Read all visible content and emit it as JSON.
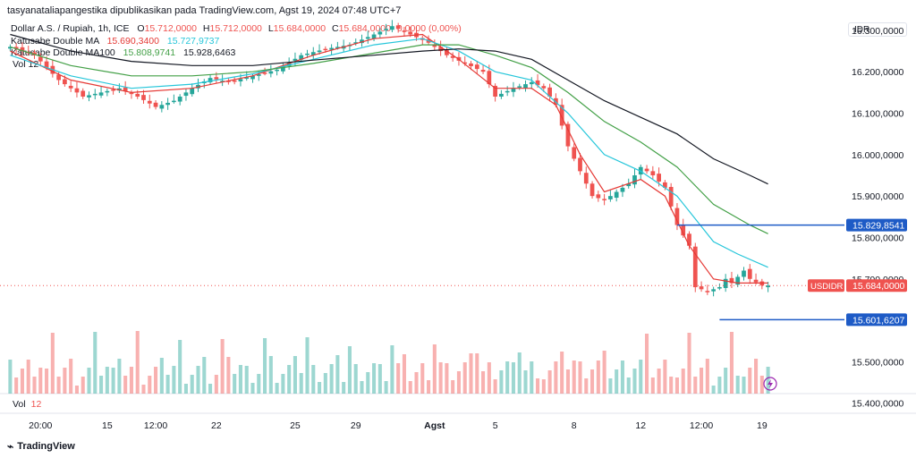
{
  "header": "tasyanataliapangestika dipublikasikan pada TradingView.com, Agst 19, 2024 07:48 UTC+7",
  "symbol": {
    "name": "Dollar A.S. / Rupiah, 1h, ICE",
    "O_label": "O",
    "O": "15.712,0000",
    "H_label": "H",
    "H": "15.712,0000",
    "L_label": "L",
    "L": "15.684,0000",
    "C_label": "C",
    "C": "15.684,0000",
    "change": "0,0000 (0,00%)"
  },
  "indicators": [
    {
      "name": "Katusabe Double MA",
      "v1": "15.690,3400",
      "v2": "15.727,9737",
      "c1": "#e53935",
      "c2": "#26c6da"
    },
    {
      "name": "Katusabe Double MA100",
      "v1": "15.808,9741",
      "v2": "15.928,6463",
      "c1": "#43a047",
      "c2": "#131722"
    }
  ],
  "vol_top": "Vol 12",
  "vol_pane": {
    "label": "Vol",
    "value": "12"
  },
  "currency": "IDR",
  "footer": "TradingView",
  "chart_data": {
    "type": "candlestick",
    "title": "Dollar A.S. / Rupiah, 1h, ICE",
    "ylabel": "IDR",
    "ylim": [
      15380,
      16330
    ],
    "y_ticks": [
      "16.300,0000",
      "16.200,0000",
      "16.100,0000",
      "16.000,0000",
      "15.900,0000",
      "15.800,0000",
      "15.700,0000",
      "15.500,0000",
      "15.400,0000"
    ],
    "y_tick_values": [
      16300,
      16200,
      16100,
      16000,
      15900,
      15800,
      15700,
      15500,
      15400
    ],
    "x_ticks": [
      "20:00",
      "15",
      "12:00",
      "22",
      "25",
      "29",
      "Agst",
      "5",
      "8",
      "12",
      "12:00",
      "19"
    ],
    "x_tick_index": [
      5,
      16,
      24,
      34,
      47,
      57,
      70,
      80,
      93,
      104,
      114,
      124
    ],
    "n_bars": 126,
    "price_label": {
      "symbol": "USDIDR",
      "value": "15.684,0000",
      "y": 15684
    },
    "levels": [
      {
        "label": "15.829,8541",
        "y": 15829.8541,
        "from": 110
      },
      {
        "label": "15.601,6207",
        "y": 15601.6207,
        "from": 117
      }
    ],
    "close_path": [
      [
        0,
        16260
      ],
      [
        4,
        16240
      ],
      [
        8,
        16180
      ],
      [
        12,
        16140
      ],
      [
        15,
        16150
      ],
      [
        18,
        16160
      ],
      [
        21,
        16140
      ],
      [
        24,
        16115
      ],
      [
        27,
        16130
      ],
      [
        30,
        16160
      ],
      [
        33,
        16185
      ],
      [
        36,
        16175
      ],
      [
        40,
        16190
      ],
      [
        44,
        16205
      ],
      [
        48,
        16240
      ],
      [
        52,
        16255
      ],
      [
        56,
        16265
      ],
      [
        60,
        16290
      ],
      [
        63,
        16310
      ],
      [
        66,
        16290
      ],
      [
        69,
        16270
      ],
      [
        72,
        16240
      ],
      [
        75,
        16220
      ],
      [
        78,
        16200
      ],
      [
        80,
        16140
      ],
      [
        83,
        16160
      ],
      [
        86,
        16175
      ],
      [
        88,
        16160
      ],
      [
        90,
        16120
      ],
      [
        92,
        16020
      ],
      [
        94,
        15960
      ],
      [
        96,
        15900
      ],
      [
        98,
        15890
      ],
      [
        100,
        15910
      ],
      [
        102,
        15930
      ],
      [
        104,
        15970
      ],
      [
        106,
        15950
      ],
      [
        108,
        15920
      ],
      [
        110,
        15830
      ],
      [
        112,
        15780
      ],
      [
        113,
        15680
      ],
      [
        115,
        15670
      ],
      [
        117,
        15680
      ],
      [
        118,
        15700
      ],
      [
        119,
        15690
      ],
      [
        121,
        15720
      ],
      [
        122,
        15700
      ],
      [
        124,
        15684
      ],
      [
        125,
        15684
      ]
    ],
    "series": [
      {
        "name": "Katusabe Double MA (fast)",
        "color": "#e53935",
        "points": [
          [
            0,
            16250
          ],
          [
            10,
            16180
          ],
          [
            20,
            16150
          ],
          [
            30,
            16160
          ],
          [
            40,
            16190
          ],
          [
            50,
            16240
          ],
          [
            60,
            16280
          ],
          [
            68,
            16290
          ],
          [
            74,
            16230
          ],
          [
            80,
            16160
          ],
          [
            86,
            16160
          ],
          [
            90,
            16120
          ],
          [
            94,
            16000
          ],
          [
            98,
            15910
          ],
          [
            104,
            15940
          ],
          [
            108,
            15900
          ],
          [
            112,
            15780
          ],
          [
            116,
            15700
          ],
          [
            120,
            15690
          ],
          [
            125,
            15690
          ]
        ]
      },
      {
        "name": "Katusabe Double MA (slow)",
        "color": "#26c6da",
        "points": [
          [
            0,
            16240
          ],
          [
            10,
            16190
          ],
          [
            20,
            16160
          ],
          [
            30,
            16170
          ],
          [
            40,
            16195
          ],
          [
            50,
            16230
          ],
          [
            60,
            16265
          ],
          [
            68,
            16280
          ],
          [
            74,
            16250
          ],
          [
            80,
            16200
          ],
          [
            86,
            16180
          ],
          [
            92,
            16100
          ],
          [
            98,
            16000
          ],
          [
            104,
            15960
          ],
          [
            110,
            15900
          ],
          [
            116,
            15790
          ],
          [
            120,
            15760
          ],
          [
            125,
            15728
          ]
        ]
      },
      {
        "name": "Katusabe Double MA100 (fast)",
        "color": "#43a047",
        "points": [
          [
            0,
            16260
          ],
          [
            10,
            16215
          ],
          [
            20,
            16190
          ],
          [
            30,
            16190
          ],
          [
            40,
            16200
          ],
          [
            50,
            16220
          ],
          [
            60,
            16245
          ],
          [
            68,
            16265
          ],
          [
            74,
            16265
          ],
          [
            80,
            16240
          ],
          [
            86,
            16210
          ],
          [
            92,
            16150
          ],
          [
            98,
            16080
          ],
          [
            104,
            16030
          ],
          [
            110,
            15970
          ],
          [
            116,
            15880
          ],
          [
            122,
            15830
          ],
          [
            125,
            15809
          ]
        ]
      },
      {
        "name": "Katusabe Double MA100 (slow)",
        "color": "#131722",
        "points": [
          [
            0,
            16290
          ],
          [
            10,
            16250
          ],
          [
            20,
            16225
          ],
          [
            30,
            16215
          ],
          [
            40,
            16215
          ],
          [
            50,
            16228
          ],
          [
            60,
            16240
          ],
          [
            68,
            16250
          ],
          [
            74,
            16255
          ],
          [
            80,
            16250
          ],
          [
            86,
            16230
          ],
          [
            92,
            16180
          ],
          [
            98,
            16130
          ],
          [
            104,
            16090
          ],
          [
            110,
            16050
          ],
          [
            116,
            15990
          ],
          [
            122,
            15950
          ],
          [
            125,
            15929
          ]
        ]
      }
    ]
  }
}
